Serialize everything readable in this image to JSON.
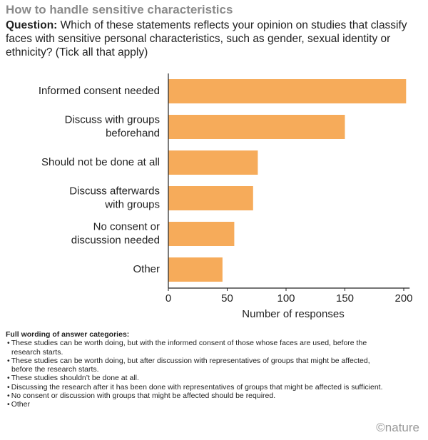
{
  "chart_data": {
    "type": "hbar",
    "title": "How to handle sensitive characteristics",
    "question_label": "Question:",
    "question_text": "Which of these statements reflects your opinion on studies that classify faces with sensitive personal characteristics, such as gender, sexual identity or ethnicity? (Tick all that apply)",
    "categories": [
      [
        "Informed consent needed"
      ],
      [
        "Discuss with groups",
        "beforehand"
      ],
      [
        "Should not be done at all"
      ],
      [
        "Discuss afterwards",
        "with groups"
      ],
      [
        "No consent or",
        "discussion needed"
      ],
      [
        "Other"
      ]
    ],
    "values": [
      202,
      150,
      76,
      72,
      56,
      46
    ],
    "color": "#f6ab5a",
    "xlabel": "Number of responses",
    "xlim": [
      0,
      205
    ],
    "xticks": [
      0,
      50,
      100,
      150,
      200
    ],
    "footnote_title": "Full wording of answer categories:",
    "footnote_items": [
      "These studies can be worth doing, but with the informed consent of those whose faces are used, before the research starts.",
      "These studies can be worth doing, but after discussion with representatives of groups that might be affected, before the research starts.",
      "These studies shouldn’t be done at all.",
      "Discussing the research after it has been done with representatives of groups that might be affected is sufficient.",
      "No consent or discussion with groups that might be affected should be required.",
      "Other"
    ],
    "source": "©nature"
  }
}
